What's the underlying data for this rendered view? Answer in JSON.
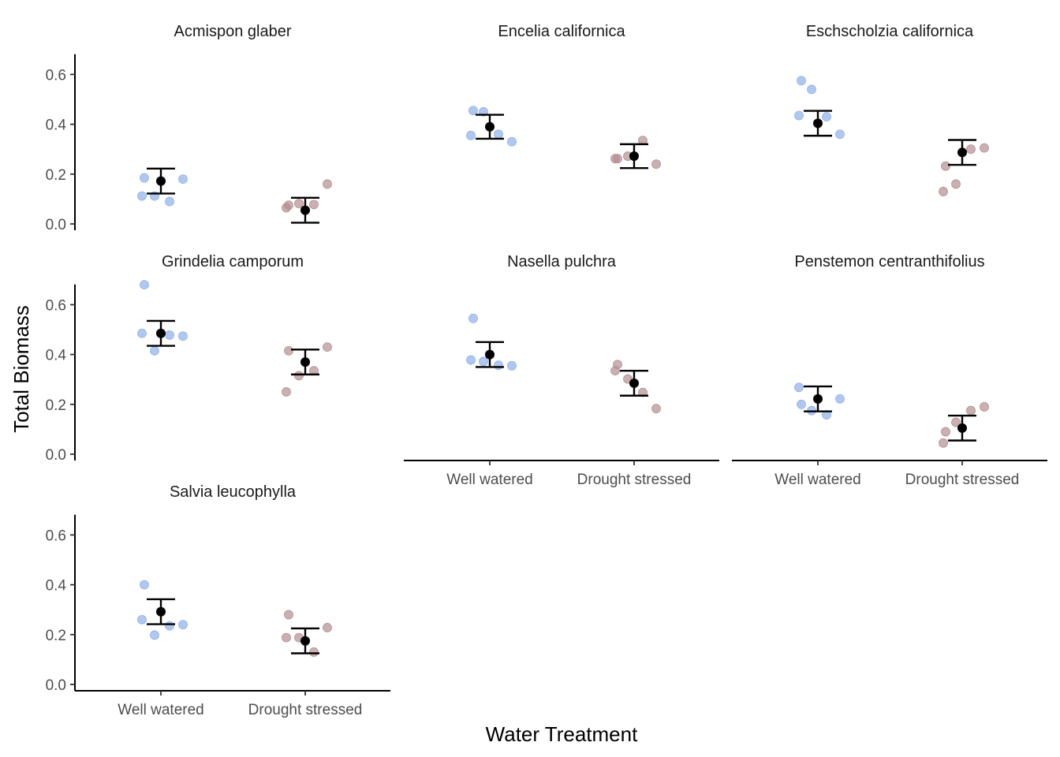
{
  "chart_data": {
    "type": "scatter",
    "xlabel": "Water Treatment",
    "ylabel": "Total Biomass",
    "categories": [
      "Well watered",
      "Drought stressed"
    ],
    "y_ticks": [
      "0.0",
      "0.2",
      "0.4",
      "0.6"
    ],
    "ylim": [
      0,
      0.7
    ],
    "colors": {
      "Well watered": "#8EB0EA",
      "Drought stressed": "#B48E90",
      "mean": "#000000"
    },
    "grid": false,
    "legend": "none",
    "panels": [
      {
        "title": "Acmispon glaber",
        "well_watered": [
          0.112,
          0.185,
          0.112,
          0.09,
          0.18
        ],
        "drought_stressed": [
          0.065,
          0.075,
          0.082,
          0.078,
          0.16
        ],
        "mean": [
          0.172,
          0.055
        ],
        "error": [
          0.05,
          0.05
        ]
      },
      {
        "title": "Encelia californica",
        "well_watered": [
          0.355,
          0.455,
          0.45,
          0.36,
          0.33
        ],
        "drought_stressed": [
          0.262,
          0.262,
          0.272,
          0.335,
          0.24
        ],
        "mean": [
          0.39,
          0.272
        ],
        "error": [
          0.048,
          0.048
        ]
      },
      {
        "title": "Eschscholzia californica",
        "well_watered": [
          0.435,
          0.575,
          0.54,
          0.43,
          0.36
        ],
        "drought_stressed": [
          0.13,
          0.232,
          0.16,
          0.3,
          0.305
        ],
        "mean": [
          0.404,
          0.287
        ],
        "error": [
          0.05,
          0.05
        ]
      },
      {
        "title": "Grindelia camporum",
        "well_watered": [
          0.485,
          0.68,
          0.415,
          0.478,
          0.474
        ],
        "drought_stressed": [
          0.25,
          0.415,
          0.315,
          0.335,
          0.43
        ],
        "mean": [
          0.485,
          0.37
        ],
        "error": [
          0.05,
          0.05
        ]
      },
      {
        "title": "Nasella pulchra",
        "well_watered": [
          0.378,
          0.545,
          0.372,
          0.357,
          0.355
        ],
        "drought_stressed": [
          0.335,
          0.36,
          0.302,
          0.248,
          0.183
        ],
        "mean": [
          0.4,
          0.285
        ],
        "error": [
          0.05,
          0.05
        ]
      },
      {
        "title": "Penstemon centranthifolius",
        "well_watered": [
          0.268,
          0.2,
          0.175,
          0.158,
          0.222
        ],
        "drought_stressed": [
          0.045,
          0.09,
          0.128,
          0.175,
          0.19
        ],
        "mean": [
          0.222,
          0.105
        ],
        "error": [
          0.05,
          0.05
        ]
      },
      {
        "title": "Salvia leucophylla",
        "well_watered": [
          0.26,
          0.4,
          0.198,
          0.235,
          0.24
        ],
        "drought_stressed": [
          0.188,
          0.28,
          0.188,
          0.13,
          0.228
        ],
        "mean": [
          0.292,
          0.175
        ],
        "error": [
          0.05,
          0.05
        ]
      }
    ]
  }
}
